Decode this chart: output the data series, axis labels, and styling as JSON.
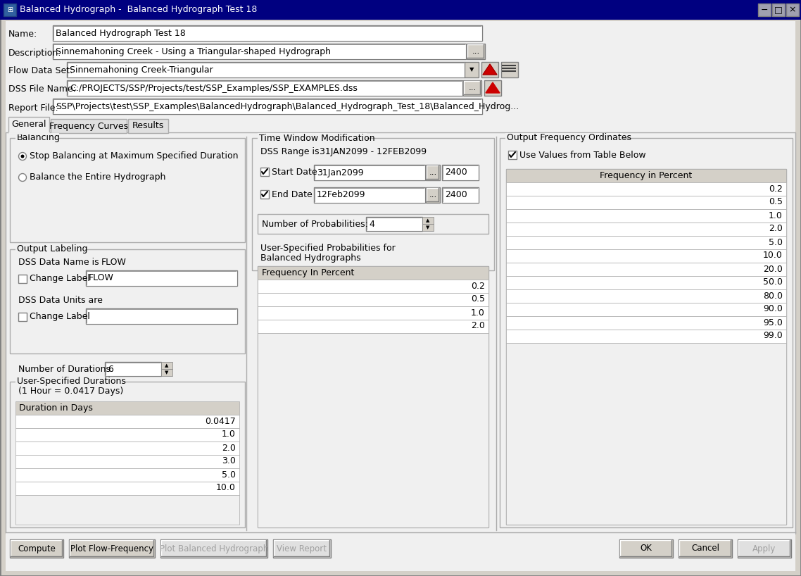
{
  "title": "Balanced Hydrograph -  Balanced Hydrograph Test 18",
  "win_bg": "#f0f0f0",
  "titlebar_color": "#0a246a",
  "panel_bg": "#ececec",
  "white": "#ffffff",
  "fields": {
    "name": "Balanced Hydrograph Test 18",
    "description": "Sinnemahoning Creek - Using a Triangular-shaped Hydrograph",
    "flow_data_set": "Sinnemahoning Creek-Triangular",
    "dss_file_name": "C:/PROJECTS/SSP/Projects/test/SSP_Examples/SSP_EXAMPLES.dss",
    "report_file": "SSP\\Projects\\test\\SSP_Examples\\BalancedHydrograph\\Balanced_Hydrograph_Test_18\\Balanced_Hydrog..."
  },
  "tabs": [
    "General",
    "Frequency Curves",
    "Results"
  ],
  "balancing_option1": "Stop Balancing at Maximum Specified Duration",
  "balancing_option2": "Balance the Entire Hydrograph",
  "dss_data_name": "FLOW",
  "change_label1_value": "FLOW",
  "number_of_durations": "6",
  "duration_header": "(1 Hour = 0.0417 Days)",
  "duration_col": "Duration in Days",
  "duration_values": [
    "0.0417",
    "1.0",
    "2.0",
    "3.0",
    "5.0",
    "10.0"
  ],
  "dss_range": "31JAN2099 - 12FEB2099",
  "start_date": "31Jan2099",
  "start_time": "2400",
  "end_date": "12Feb2099",
  "end_time": "2400",
  "num_prob": "4",
  "prob_label1": "User-Specified Probabilities for",
  "prob_label2": "Balanced Hydrographs",
  "freq_in_percent_label": "Frequency In Percent",
  "prob_values": [
    "0.2",
    "0.5",
    "1.0",
    "2.0"
  ],
  "freq_in_percent_header": "Frequency in Percent",
  "freq_values": [
    "0.2",
    "0.5",
    "1.0",
    "2.0",
    "5.0",
    "10.0",
    "20.0",
    "50.0",
    "80.0",
    "90.0",
    "95.0",
    "99.0"
  ],
  "btn_left": [
    "Compute",
    "Plot Flow-Frequency",
    "Plot Balanced Hydrograph",
    "View Report"
  ],
  "btn_left_enabled": [
    true,
    true,
    false,
    false
  ],
  "btn_right": [
    "OK",
    "Cancel",
    "Apply"
  ],
  "btn_right_enabled": [
    true,
    true,
    false
  ]
}
